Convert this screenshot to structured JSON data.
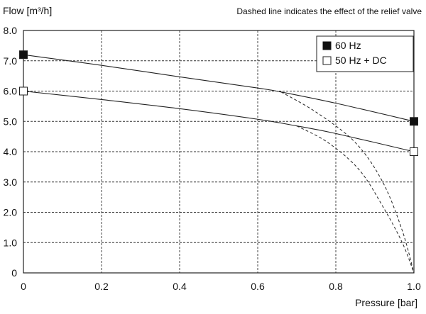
{
  "chart_data": {
    "type": "line",
    "ylabel": "Flow [m³/h]",
    "xlabel": "Pressure [bar]",
    "note": "Dashed line indicates the effect of the relief valve",
    "xlim": [
      0,
      1.0
    ],
    "ylim": [
      0,
      8.0
    ],
    "x_ticks": [
      0,
      0.2,
      0.4,
      0.6,
      0.8,
      1.0
    ],
    "x_tick_labels": [
      "0",
      "0.2",
      "0.4",
      "0.6",
      "0.8",
      "1.0"
    ],
    "y_ticks": [
      0,
      1,
      2,
      3,
      4,
      5,
      6,
      7,
      8
    ],
    "y_tick_labels": [
      "0",
      "1.0",
      "2.0",
      "3.0",
      "4.0",
      "5.0",
      "6.0",
      "7.0",
      "8.0"
    ],
    "grid": true,
    "legend_position": "top-right",
    "colors": {
      "line": "#222222",
      "grid": "#333333",
      "filled_marker": "#111111",
      "open_marker": "#ffffff"
    },
    "series": [
      {
        "name": "60 Hz",
        "marker": "filled-square",
        "x": [
          0,
          0.2,
          0.4,
          0.6,
          0.66,
          0.8,
          1.0
        ],
        "y": [
          7.2,
          6.85,
          6.47,
          6.1,
          5.97,
          5.6,
          5.0
        ],
        "relief_valve": {
          "x": [
            0.66,
            0.75,
            0.85,
            0.92,
            0.97,
            1.0
          ],
          "y": [
            5.97,
            5.3,
            4.3,
            3.0,
            1.4,
            0
          ]
        }
      },
      {
        "name": "50 Hz + DC",
        "marker": "open-square",
        "x": [
          0,
          0.2,
          0.4,
          0.6,
          0.7,
          0.8,
          1.0
        ],
        "y": [
          6.0,
          5.72,
          5.42,
          5.07,
          4.85,
          4.6,
          4.0
        ],
        "relief_valve": {
          "x": [
            0.7,
            0.78,
            0.86,
            0.92,
            0.97,
            1.0
          ],
          "y": [
            4.85,
            4.3,
            3.4,
            2.2,
            1.0,
            0
          ]
        }
      }
    ]
  }
}
